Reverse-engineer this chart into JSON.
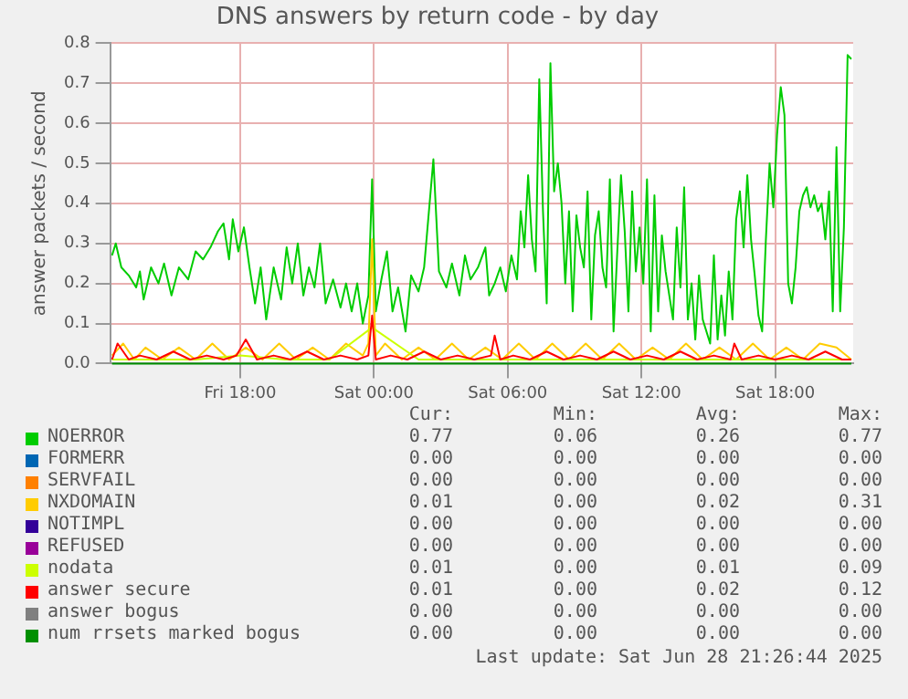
{
  "chart_data": {
    "type": "line",
    "title": "DNS answers by return code - by day",
    "ylabel": "answer packets / second",
    "xlim": [
      "2025-06-27T12:10",
      "2025-06-28T21:30"
    ],
    "xticks": [
      {
        "value": "2025-06-27T18:00",
        "label": "Fri 18:00"
      },
      {
        "value": "2025-06-28T00:00",
        "label": "Sat 00:00"
      },
      {
        "value": "2025-06-28T06:00",
        "label": "Sat 06:00"
      },
      {
        "value": "2025-06-28T12:00",
        "label": "Sat 12:00"
      },
      {
        "value": "2025-06-28T18:00",
        "label": "Sat 18:00"
      }
    ],
    "ylim": [
      0,
      0.8
    ],
    "yticks": [
      {
        "value": 0,
        "label": "0.0"
      },
      0.1,
      0.2,
      0.3,
      0.4,
      0.5,
      0.6,
      0.7,
      0.8
    ],
    "grid": true,
    "legend": "bottom",
    "marker": "none",
    "line_style": "solid",
    "series": [
      {
        "name": "NOERROR",
        "color": "#00cc00",
        "x": [
          "2025-06-27T12:15",
          "2025-06-27T12:25",
          "2025-06-27T12:40",
          "2025-06-27T13:00",
          "2025-06-27T13:20",
          "2025-06-27T13:30",
          "2025-06-27T13:40",
          "2025-06-27T14:00",
          "2025-06-27T14:20",
          "2025-06-27T14:35",
          "2025-06-27T14:55",
          "2025-06-27T15:15",
          "2025-06-27T15:40",
          "2025-06-27T16:00",
          "2025-06-27T16:20",
          "2025-06-27T16:40",
          "2025-06-27T17:00",
          "2025-06-27T17:15",
          "2025-06-27T17:30",
          "2025-06-27T17:40",
          "2025-06-27T17:55",
          "2025-06-27T18:10",
          "2025-06-27T18:25",
          "2025-06-27T18:40",
          "2025-06-27T18:55",
          "2025-06-27T19:10",
          "2025-06-27T19:30",
          "2025-06-27T19:50",
          "2025-06-27T20:05",
          "2025-06-27T20:20",
          "2025-06-27T20:35",
          "2025-06-27T20:50",
          "2025-06-27T21:05",
          "2025-06-27T21:20",
          "2025-06-27T21:35",
          "2025-06-27T21:50",
          "2025-06-27T22:10",
          "2025-06-27T22:30",
          "2025-06-27T22:45",
          "2025-06-27T23:00",
          "2025-06-27T23:15",
          "2025-06-27T23:30",
          "2025-06-27T23:45",
          "2025-06-27T23:55",
          "2025-06-28T00:05",
          "2025-06-28T00:20",
          "2025-06-28T00:35",
          "2025-06-28T00:50",
          "2025-06-28T01:05",
          "2025-06-28T01:25",
          "2025-06-28T01:40",
          "2025-06-28T02:00",
          "2025-06-28T02:15",
          "2025-06-28T02:40",
          "2025-06-28T02:55",
          "2025-06-28T03:15",
          "2025-06-28T03:30",
          "2025-06-28T03:50",
          "2025-06-28T04:05",
          "2025-06-28T04:20",
          "2025-06-28T04:40",
          "2025-06-28T05:00",
          "2025-06-28T05:10",
          "2025-06-28T05:25",
          "2025-06-28T05:40",
          "2025-06-28T05:55",
          "2025-06-28T06:10",
          "2025-06-28T06:25",
          "2025-06-28T06:35",
          "2025-06-28T06:45",
          "2025-06-28T06:55",
          "2025-06-28T07:05",
          "2025-06-28T07:15",
          "2025-06-28T07:25",
          "2025-06-28T07:35",
          "2025-06-28T07:45",
          "2025-06-28T07:55",
          "2025-06-28T08:05",
          "2025-06-28T08:15",
          "2025-06-28T08:25",
          "2025-06-28T08:35",
          "2025-06-28T08:45",
          "2025-06-28T08:55",
          "2025-06-28T09:05",
          "2025-06-28T09:15",
          "2025-06-28T09:25",
          "2025-06-28T09:35",
          "2025-06-28T09:45",
          "2025-06-28T09:55",
          "2025-06-28T10:05",
          "2025-06-28T10:15",
          "2025-06-28T10:25",
          "2025-06-28T10:35",
          "2025-06-28T10:45",
          "2025-06-28T10:55",
          "2025-06-28T11:05",
          "2025-06-28T11:15",
          "2025-06-28T11:25",
          "2025-06-28T11:35",
          "2025-06-28T11:45",
          "2025-06-28T11:55",
          "2025-06-28T12:05",
          "2025-06-28T12:15",
          "2025-06-28T12:25",
          "2025-06-28T12:35",
          "2025-06-28T12:45",
          "2025-06-28T12:55",
          "2025-06-28T13:05",
          "2025-06-28T13:25",
          "2025-06-28T13:35",
          "2025-06-28T13:45",
          "2025-06-28T13:55",
          "2025-06-28T14:05",
          "2025-06-28T14:15",
          "2025-06-28T14:25",
          "2025-06-28T14:35",
          "2025-06-28T14:45",
          "2025-06-28T15:05",
          "2025-06-28T15:15",
          "2025-06-28T15:25",
          "2025-06-28T15:35",
          "2025-06-28T15:45",
          "2025-06-28T15:55",
          "2025-06-28T16:05",
          "2025-06-28T16:15",
          "2025-06-28T16:25",
          "2025-06-28T16:35",
          "2025-06-28T16:45",
          "2025-06-28T16:55",
          "2025-06-28T17:05",
          "2025-06-28T17:15",
          "2025-06-28T17:25",
          "2025-06-28T17:35",
          "2025-06-28T17:45",
          "2025-06-28T17:55",
          "2025-06-28T18:05",
          "2025-06-28T18:15",
          "2025-06-28T18:25",
          "2025-06-28T18:35",
          "2025-06-28T18:45",
          "2025-06-28T18:55",
          "2025-06-28T19:05",
          "2025-06-28T19:15",
          "2025-06-28T19:25",
          "2025-06-28T19:35",
          "2025-06-28T19:45",
          "2025-06-28T19:55",
          "2025-06-28T20:05",
          "2025-06-28T20:15",
          "2025-06-28T20:25",
          "2025-06-28T20:35",
          "2025-06-28T20:45",
          "2025-06-28T20:55",
          "2025-06-28T21:05",
          "2025-06-28T21:15",
          "2025-06-28T21:25"
        ],
        "values": [
          0.27,
          0.3,
          0.24,
          0.22,
          0.19,
          0.23,
          0.16,
          0.24,
          0.2,
          0.25,
          0.17,
          0.24,
          0.21,
          0.28,
          0.26,
          0.29,
          0.33,
          0.35,
          0.26,
          0.36,
          0.28,
          0.34,
          0.24,
          0.15,
          0.24,
          0.11,
          0.24,
          0.16,
          0.29,
          0.2,
          0.3,
          0.17,
          0.24,
          0.19,
          0.3,
          0.15,
          0.21,
          0.14,
          0.2,
          0.13,
          0.2,
          0.1,
          0.17,
          0.46,
          0.13,
          0.21,
          0.28,
          0.13,
          0.19,
          0.08,
          0.22,
          0.18,
          0.24,
          0.51,
          0.23,
          0.19,
          0.25,
          0.17,
          0.27,
          0.21,
          0.24,
          0.29,
          0.17,
          0.2,
          0.24,
          0.18,
          0.27,
          0.21,
          0.38,
          0.29,
          0.47,
          0.31,
          0.23,
          0.71,
          0.38,
          0.15,
          0.75,
          0.43,
          0.5,
          0.4,
          0.2,
          0.38,
          0.13,
          0.37,
          0.29,
          0.24,
          0.43,
          0.11,
          0.32,
          0.38,
          0.24,
          0.19,
          0.46,
          0.08,
          0.28,
          0.47,
          0.33,
          0.13,
          0.43,
          0.23,
          0.34,
          0.2,
          0.46,
          0.08,
          0.42,
          0.13,
          0.32,
          0.23,
          0.11,
          0.34,
          0.19,
          0.44,
          0.11,
          0.2,
          0.06,
          0.22,
          0.11,
          0.05,
          0.27,
          0.06,
          0.17,
          0.07,
          0.23,
          0.11,
          0.36,
          0.43,
          0.29,
          0.47,
          0.31,
          0.22,
          0.12,
          0.08,
          0.31,
          0.5,
          0.39,
          0.57,
          0.69,
          0.62,
          0.2,
          0.15,
          0.24,
          0.38,
          0.42,
          0.44,
          0.39,
          0.42,
          0.38,
          0.4,
          0.31,
          0.43,
          0.13,
          0.54,
          0.13,
          0.34,
          0.77,
          0.76
        ]
      },
      {
        "name": "FORMERR",
        "color": "#0066b3"
      },
      {
        "name": "SERVFAIL",
        "color": "#ff8000"
      },
      {
        "name": "NXDOMAIN",
        "color": "#ffcc00",
        "x": [
          "2025-06-27T12:15",
          "2025-06-27T12:45",
          "2025-06-27T13:15",
          "2025-06-27T13:45",
          "2025-06-27T14:30",
          "2025-06-27T15:15",
          "2025-06-27T16:00",
          "2025-06-27T16:45",
          "2025-06-27T17:30",
          "2025-06-27T18:15",
          "2025-06-27T19:00",
          "2025-06-27T19:45",
          "2025-06-27T20:30",
          "2025-06-27T21:15",
          "2025-06-27T22:00",
          "2025-06-27T22:45",
          "2025-06-27T23:30",
          "2025-06-27T23:45",
          "2025-06-27T23:55",
          "2025-06-28T00:05",
          "2025-06-28T00:30",
          "2025-06-28T01:15",
          "2025-06-28T02:00",
          "2025-06-28T02:45",
          "2025-06-28T03:30",
          "2025-06-28T04:15",
          "2025-06-28T05:00",
          "2025-06-28T05:45",
          "2025-06-28T06:30",
          "2025-06-28T07:15",
          "2025-06-28T08:00",
          "2025-06-28T08:45",
          "2025-06-28T09:30",
          "2025-06-28T10:15",
          "2025-06-28T11:00",
          "2025-06-28T11:45",
          "2025-06-28T12:30",
          "2025-06-28T13:15",
          "2025-06-28T14:00",
          "2025-06-28T14:45",
          "2025-06-28T15:30",
          "2025-06-28T16:15",
          "2025-06-28T17:00",
          "2025-06-28T17:45",
          "2025-06-28T18:30",
          "2025-06-28T19:15",
          "2025-06-28T20:00",
          "2025-06-28T20:45",
          "2025-06-28T21:25"
        ],
        "values": [
          0.02,
          0.05,
          0.01,
          0.04,
          0.01,
          0.04,
          0.01,
          0.05,
          0.01,
          0.04,
          0.01,
          0.05,
          0.01,
          0.04,
          0.01,
          0.05,
          0.02,
          0.05,
          0.31,
          0.02,
          0.05,
          0.01,
          0.04,
          0.01,
          0.05,
          0.01,
          0.04,
          0.01,
          0.05,
          0.01,
          0.05,
          0.01,
          0.05,
          0.01,
          0.05,
          0.01,
          0.04,
          0.01,
          0.05,
          0.01,
          0.04,
          0.01,
          0.05,
          0.01,
          0.04,
          0.01,
          0.05,
          0.04,
          0.01
        ]
      },
      {
        "name": "NOTIMPL",
        "color": "#330099"
      },
      {
        "name": "REFUSED",
        "color": "#990099"
      },
      {
        "name": "nodata",
        "color": "#ccff00",
        "x": [
          "2025-06-27T12:15",
          "2025-06-27T14:00",
          "2025-06-27T16:00",
          "2025-06-27T18:00",
          "2025-06-27T20:00",
          "2025-06-27T22:00",
          "2025-06-27T23:55",
          "2025-06-28T02:00",
          "2025-06-28T04:00",
          "2025-06-28T06:00",
          "2025-06-28T08:00",
          "2025-06-28T10:00",
          "2025-06-28T12:00",
          "2025-06-28T14:00",
          "2025-06-28T16:00",
          "2025-06-28T18:00",
          "2025-06-28T20:00",
          "2025-06-28T21:25"
        ],
        "values": [
          0.01,
          0.01,
          0.01,
          0.02,
          0.01,
          0.01,
          0.09,
          0.01,
          0.01,
          0.01,
          0.01,
          0.01,
          0.01,
          0.01,
          0.01,
          0.01,
          0.01,
          0.01
        ]
      },
      {
        "name": "answer secure",
        "color": "#ff0000",
        "x": [
          "2025-06-27T12:15",
          "2025-06-27T12:30",
          "2025-06-27T13:00",
          "2025-06-27T13:30",
          "2025-06-27T14:15",
          "2025-06-27T15:00",
          "2025-06-27T15:45",
          "2025-06-27T16:30",
          "2025-06-27T17:15",
          "2025-06-27T17:50",
          "2025-06-27T18:15",
          "2025-06-27T18:45",
          "2025-06-27T19:30",
          "2025-06-27T20:15",
          "2025-06-27T21:00",
          "2025-06-27T21:45",
          "2025-06-27T22:30",
          "2025-06-27T23:15",
          "2025-06-27T23:45",
          "2025-06-27T23:55",
          "2025-06-28T00:05",
          "2025-06-28T00:45",
          "2025-06-28T01:30",
          "2025-06-28T02:15",
          "2025-06-28T03:00",
          "2025-06-28T03:45",
          "2025-06-28T04:30",
          "2025-06-28T05:15",
          "2025-06-28T05:25",
          "2025-06-28T05:40",
          "2025-06-28T06:15",
          "2025-06-28T07:00",
          "2025-06-28T07:45",
          "2025-06-28T08:30",
          "2025-06-28T09:15",
          "2025-06-28T10:00",
          "2025-06-28T10:45",
          "2025-06-28T11:30",
          "2025-06-28T12:15",
          "2025-06-28T13:00",
          "2025-06-28T13:45",
          "2025-06-28T14:30",
          "2025-06-28T15:15",
          "2025-06-28T16:00",
          "2025-06-28T16:10",
          "2025-06-28T16:30",
          "2025-06-28T17:15",
          "2025-06-28T18:00",
          "2025-06-28T18:45",
          "2025-06-28T19:30",
          "2025-06-28T20:15",
          "2025-06-28T21:00",
          "2025-06-28T21:25"
        ],
        "values": [
          0.01,
          0.05,
          0.01,
          0.02,
          0.01,
          0.03,
          0.01,
          0.02,
          0.01,
          0.02,
          0.06,
          0.01,
          0.02,
          0.01,
          0.03,
          0.01,
          0.02,
          0.01,
          0.02,
          0.12,
          0.01,
          0.02,
          0.01,
          0.03,
          0.01,
          0.02,
          0.01,
          0.02,
          0.07,
          0.01,
          0.02,
          0.01,
          0.03,
          0.01,
          0.02,
          0.01,
          0.03,
          0.01,
          0.02,
          0.01,
          0.03,
          0.01,
          0.02,
          0.01,
          0.05,
          0.01,
          0.02,
          0.01,
          0.02,
          0.01,
          0.03,
          0.01,
          0.01
        ]
      },
      {
        "name": "answer bogus",
        "color": "#808080"
      },
      {
        "name": "num rrsets marked bogus",
        "color": "#008f00",
        "x": [
          "2025-06-27T12:15",
          "2025-06-28T21:25"
        ],
        "values": [
          0,
          0
        ]
      }
    ],
    "annotations": [
      "Cur:",
      "Min:",
      "Avg:",
      "Max:",
      "0.77",
      "0.06",
      "0.26",
      "0.77",
      "0.00",
      "0.00",
      "0.00",
      "0.00",
      "0.00",
      "0.00",
      "0.00",
      "0.00",
      "0.01",
      "0.00",
      "0.02",
      "0.31",
      "0.00",
      "0.00",
      "0.00",
      "0.00",
      "0.00",
      "0.00",
      "0.00",
      "0.00",
      "0.01",
      "0.00",
      "0.01",
      "0.09",
      "0.01",
      "0.00",
      "0.02",
      "0.12",
      "0.00",
      "0.00",
      "0.00",
      "0.00",
      "0.00",
      "0.00",
      "0.00",
      "0.00",
      "Last update: Sat Jun 28 21:26:44 2025"
    ]
  }
}
